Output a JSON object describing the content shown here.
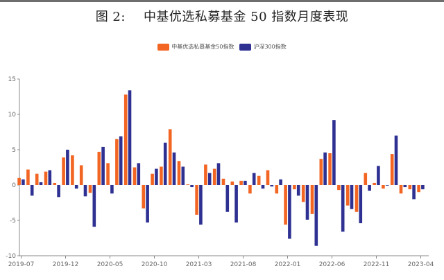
{
  "header": {
    "figure_label": "图 2:",
    "title": "中基优选私募基金 50 指数月度表现"
  },
  "colors": {
    "series_1": "#f26522",
    "series_2": "#2e3192",
    "axis": "#888888",
    "tick_text": "#666666"
  },
  "chart_data": {
    "type": "bar",
    "title": "中基优选私募基金 50 指数月度表现",
    "xlabel": "",
    "ylabel": "",
    "ylim": [
      -10,
      15
    ],
    "yticks": [
      15,
      10,
      5,
      0,
      -5,
      -10
    ],
    "xtick_labels": [
      "2019-07",
      "2019-12",
      "2020-05",
      "2020-10",
      "2021-03",
      "2021-08",
      "2022-01",
      "2022-06",
      "2022-11",
      "2023-04"
    ],
    "legend_position": "top-center",
    "grid": false,
    "categories": [
      "2019-07",
      "2019-08",
      "2019-09",
      "2019-10",
      "2019-11",
      "2019-12",
      "2020-01",
      "2020-02",
      "2020-03",
      "2020-04",
      "2020-05",
      "2020-06",
      "2020-07",
      "2020-08",
      "2020-09",
      "2020-10",
      "2020-11",
      "2020-12",
      "2021-01",
      "2021-02",
      "2021-03",
      "2021-04",
      "2021-05",
      "2021-06",
      "2021-07",
      "2021-08",
      "2021-09",
      "2021-10",
      "2021-11",
      "2021-12",
      "2022-01",
      "2022-02",
      "2022-03",
      "2022-04",
      "2022-05",
      "2022-06",
      "2022-07",
      "2022-08",
      "2022-09",
      "2022-10",
      "2022-11",
      "2022-12",
      "2023-01",
      "2023-02",
      "2023-03",
      "2023-04"
    ],
    "series": [
      {
        "name": "中基优选私募基金50指数",
        "color": "#f26522",
        "values": [
          1.0,
          2.2,
          1.6,
          1.9,
          0.3,
          3.9,
          4.2,
          2.8,
          -1.1,
          4.7,
          3.1,
          6.5,
          12.8,
          2.5,
          -3.3,
          1.6,
          2.6,
          7.9,
          3.4,
          0.1,
          -4.2,
          2.9,
          2.3,
          0.9,
          0.5,
          0.6,
          -1.2,
          1.3,
          2.1,
          -1.2,
          -5.6,
          -0.6,
          -2.4,
          -4.1,
          3.7,
          4.5,
          -0.7,
          -2.9,
          -3.8,
          1.7,
          0.3,
          -0.5,
          4.4,
          -1.2,
          -0.6,
          -1.0
        ]
      },
      {
        "name": "沪深300指数",
        "color": "#2e3192",
        "values": [
          0.8,
          -1.5,
          0.4,
          2.1,
          -1.7,
          5.0,
          -0.5,
          -1.6,
          -5.9,
          5.4,
          -1.2,
          6.9,
          13.4,
          3.1,
          -5.3,
          2.3,
          6.0,
          4.6,
          2.6,
          -0.3,
          -5.6,
          1.7,
          3.1,
          -3.8,
          -5.3,
          0.6,
          1.7,
          -0.5,
          -0.2,
          0.8,
          -7.6,
          -1.5,
          -4.9,
          -8.6,
          4.6,
          9.2,
          -6.6,
          -3.4,
          -5.4,
          -0.8,
          2.7,
          0.0,
          7.0,
          -0.3,
          -2.0,
          -0.6
        ]
      }
    ]
  }
}
